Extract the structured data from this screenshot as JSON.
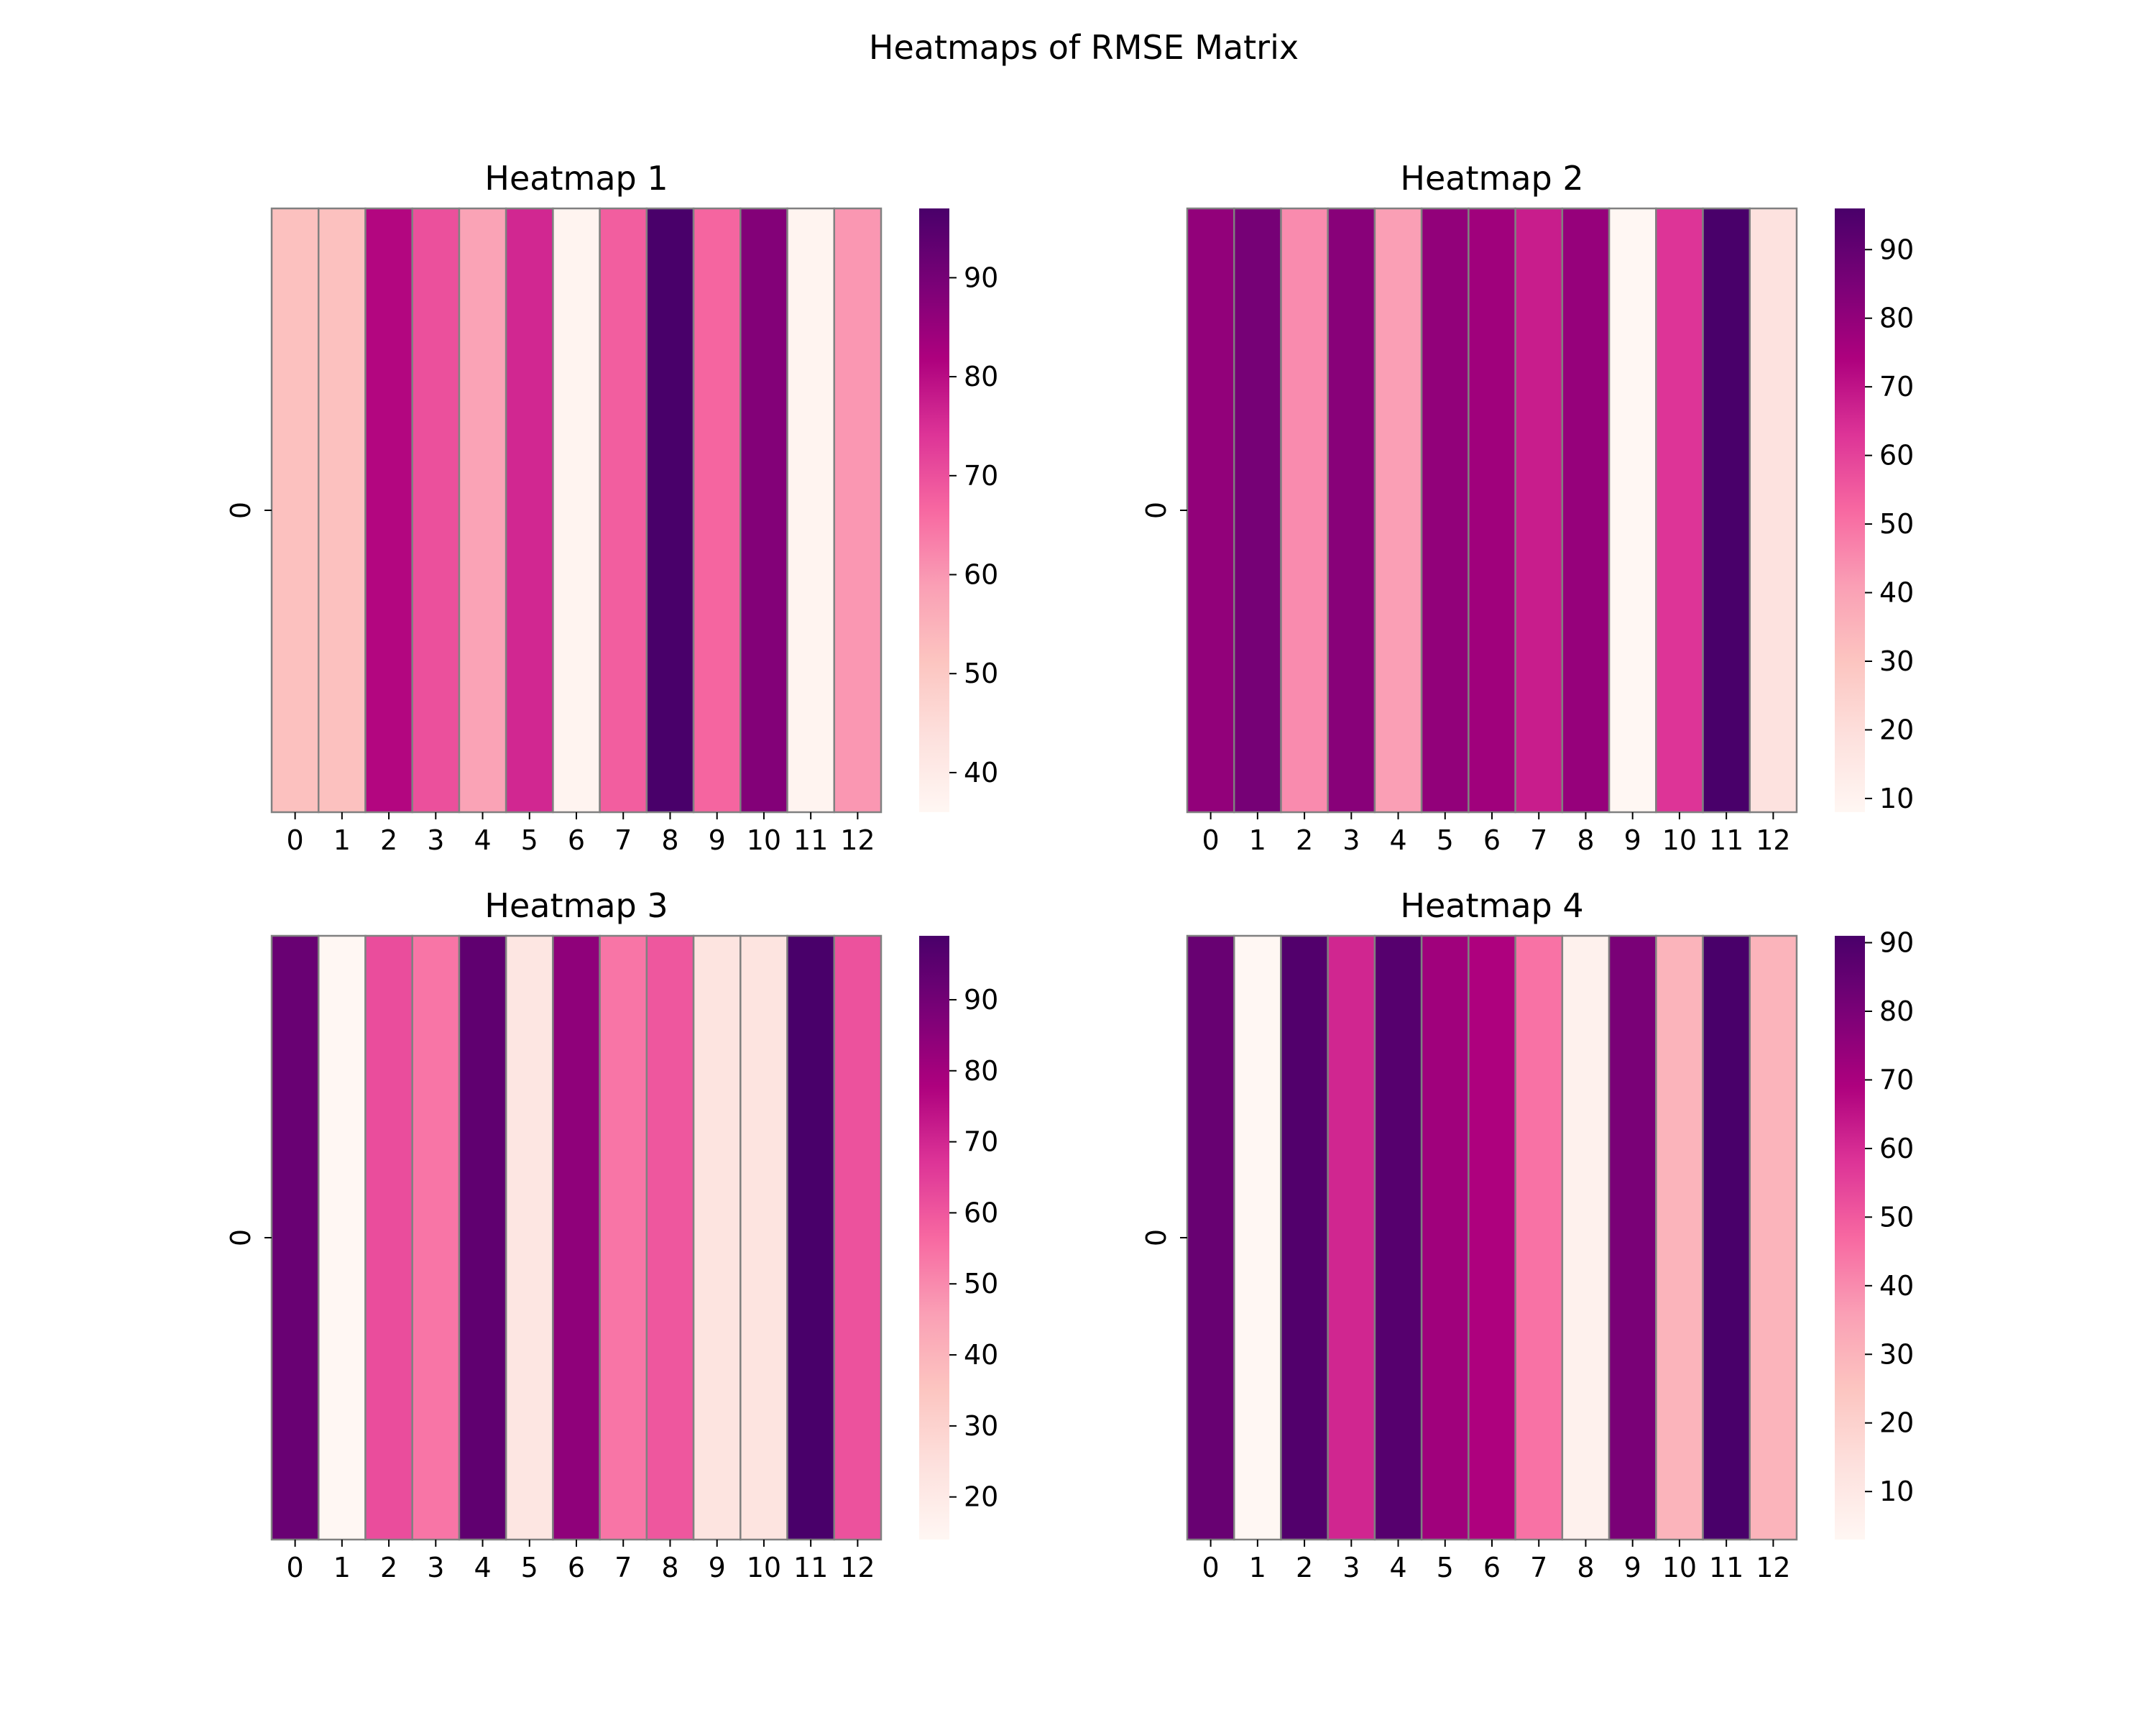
{
  "figure": {
    "title": "Heatmaps of RMSE Matrix"
  },
  "chart_data": [
    {
      "type": "heatmap",
      "title": "Heatmap 1",
      "x_categories": [
        "0",
        "1",
        "2",
        "3",
        "4",
        "5",
        "6",
        "7",
        "8",
        "9",
        "10",
        "11",
        "12"
      ],
      "y_categories": [
        "0"
      ],
      "values": [
        [
          52,
          52,
          81,
          70,
          58,
          76,
          37,
          68,
          97,
          67,
          88,
          37,
          60
        ]
      ],
      "colorbar": {
        "range": [
          36,
          97
        ],
        "ticks": [
          40,
          50,
          60,
          70,
          80,
          90
        ]
      },
      "colormap": "RdPu",
      "grid": false
    },
    {
      "type": "heatmap",
      "title": "Heatmap 2",
      "x_categories": [
        "0",
        "1",
        "2",
        "3",
        "4",
        "5",
        "6",
        "7",
        "8",
        "9",
        "10",
        "11",
        "12"
      ],
      "y_categories": [
        "0"
      ],
      "values": [
        [
          80,
          86,
          45,
          82,
          41,
          80,
          77,
          68,
          79,
          8,
          63,
          96,
          18
        ]
      ],
      "colorbar": {
        "range": [
          8,
          96
        ],
        "ticks": [
          10,
          20,
          30,
          40,
          50,
          60,
          70,
          80,
          90
        ]
      },
      "colormap": "RdPu",
      "grid": false
    },
    {
      "type": "heatmap",
      "title": "Heatmap 3",
      "x_categories": [
        "0",
        "1",
        "2",
        "3",
        "4",
        "5",
        "6",
        "7",
        "8",
        "9",
        "10",
        "11",
        "12"
      ],
      "y_categories": [
        "0"
      ],
      "values": [
        [
          92,
          14,
          62,
          54,
          94,
          22,
          84,
          54,
          60,
          23,
          23,
          99,
          61
        ]
      ],
      "colorbar": {
        "range": [
          14,
          99
        ],
        "ticks": [
          20,
          30,
          40,
          50,
          60,
          70,
          80,
          90
        ]
      },
      "colormap": "RdPu",
      "grid": false
    },
    {
      "type": "heatmap",
      "title": "Heatmap 4",
      "x_categories": [
        "0",
        "1",
        "2",
        "3",
        "4",
        "5",
        "6",
        "7",
        "8",
        "9",
        "10",
        "11",
        "12"
      ],
      "y_categories": [
        "0"
      ],
      "values": [
        [
          84,
          3,
          89,
          61,
          88,
          72,
          69,
          45,
          6,
          80,
          30,
          91,
          30
        ]
      ],
      "colorbar": {
        "range": [
          3,
          91
        ],
        "ticks": [
          10,
          20,
          30,
          40,
          50,
          60,
          70,
          80,
          90
        ]
      },
      "colormap": "RdPu",
      "grid": false
    }
  ]
}
